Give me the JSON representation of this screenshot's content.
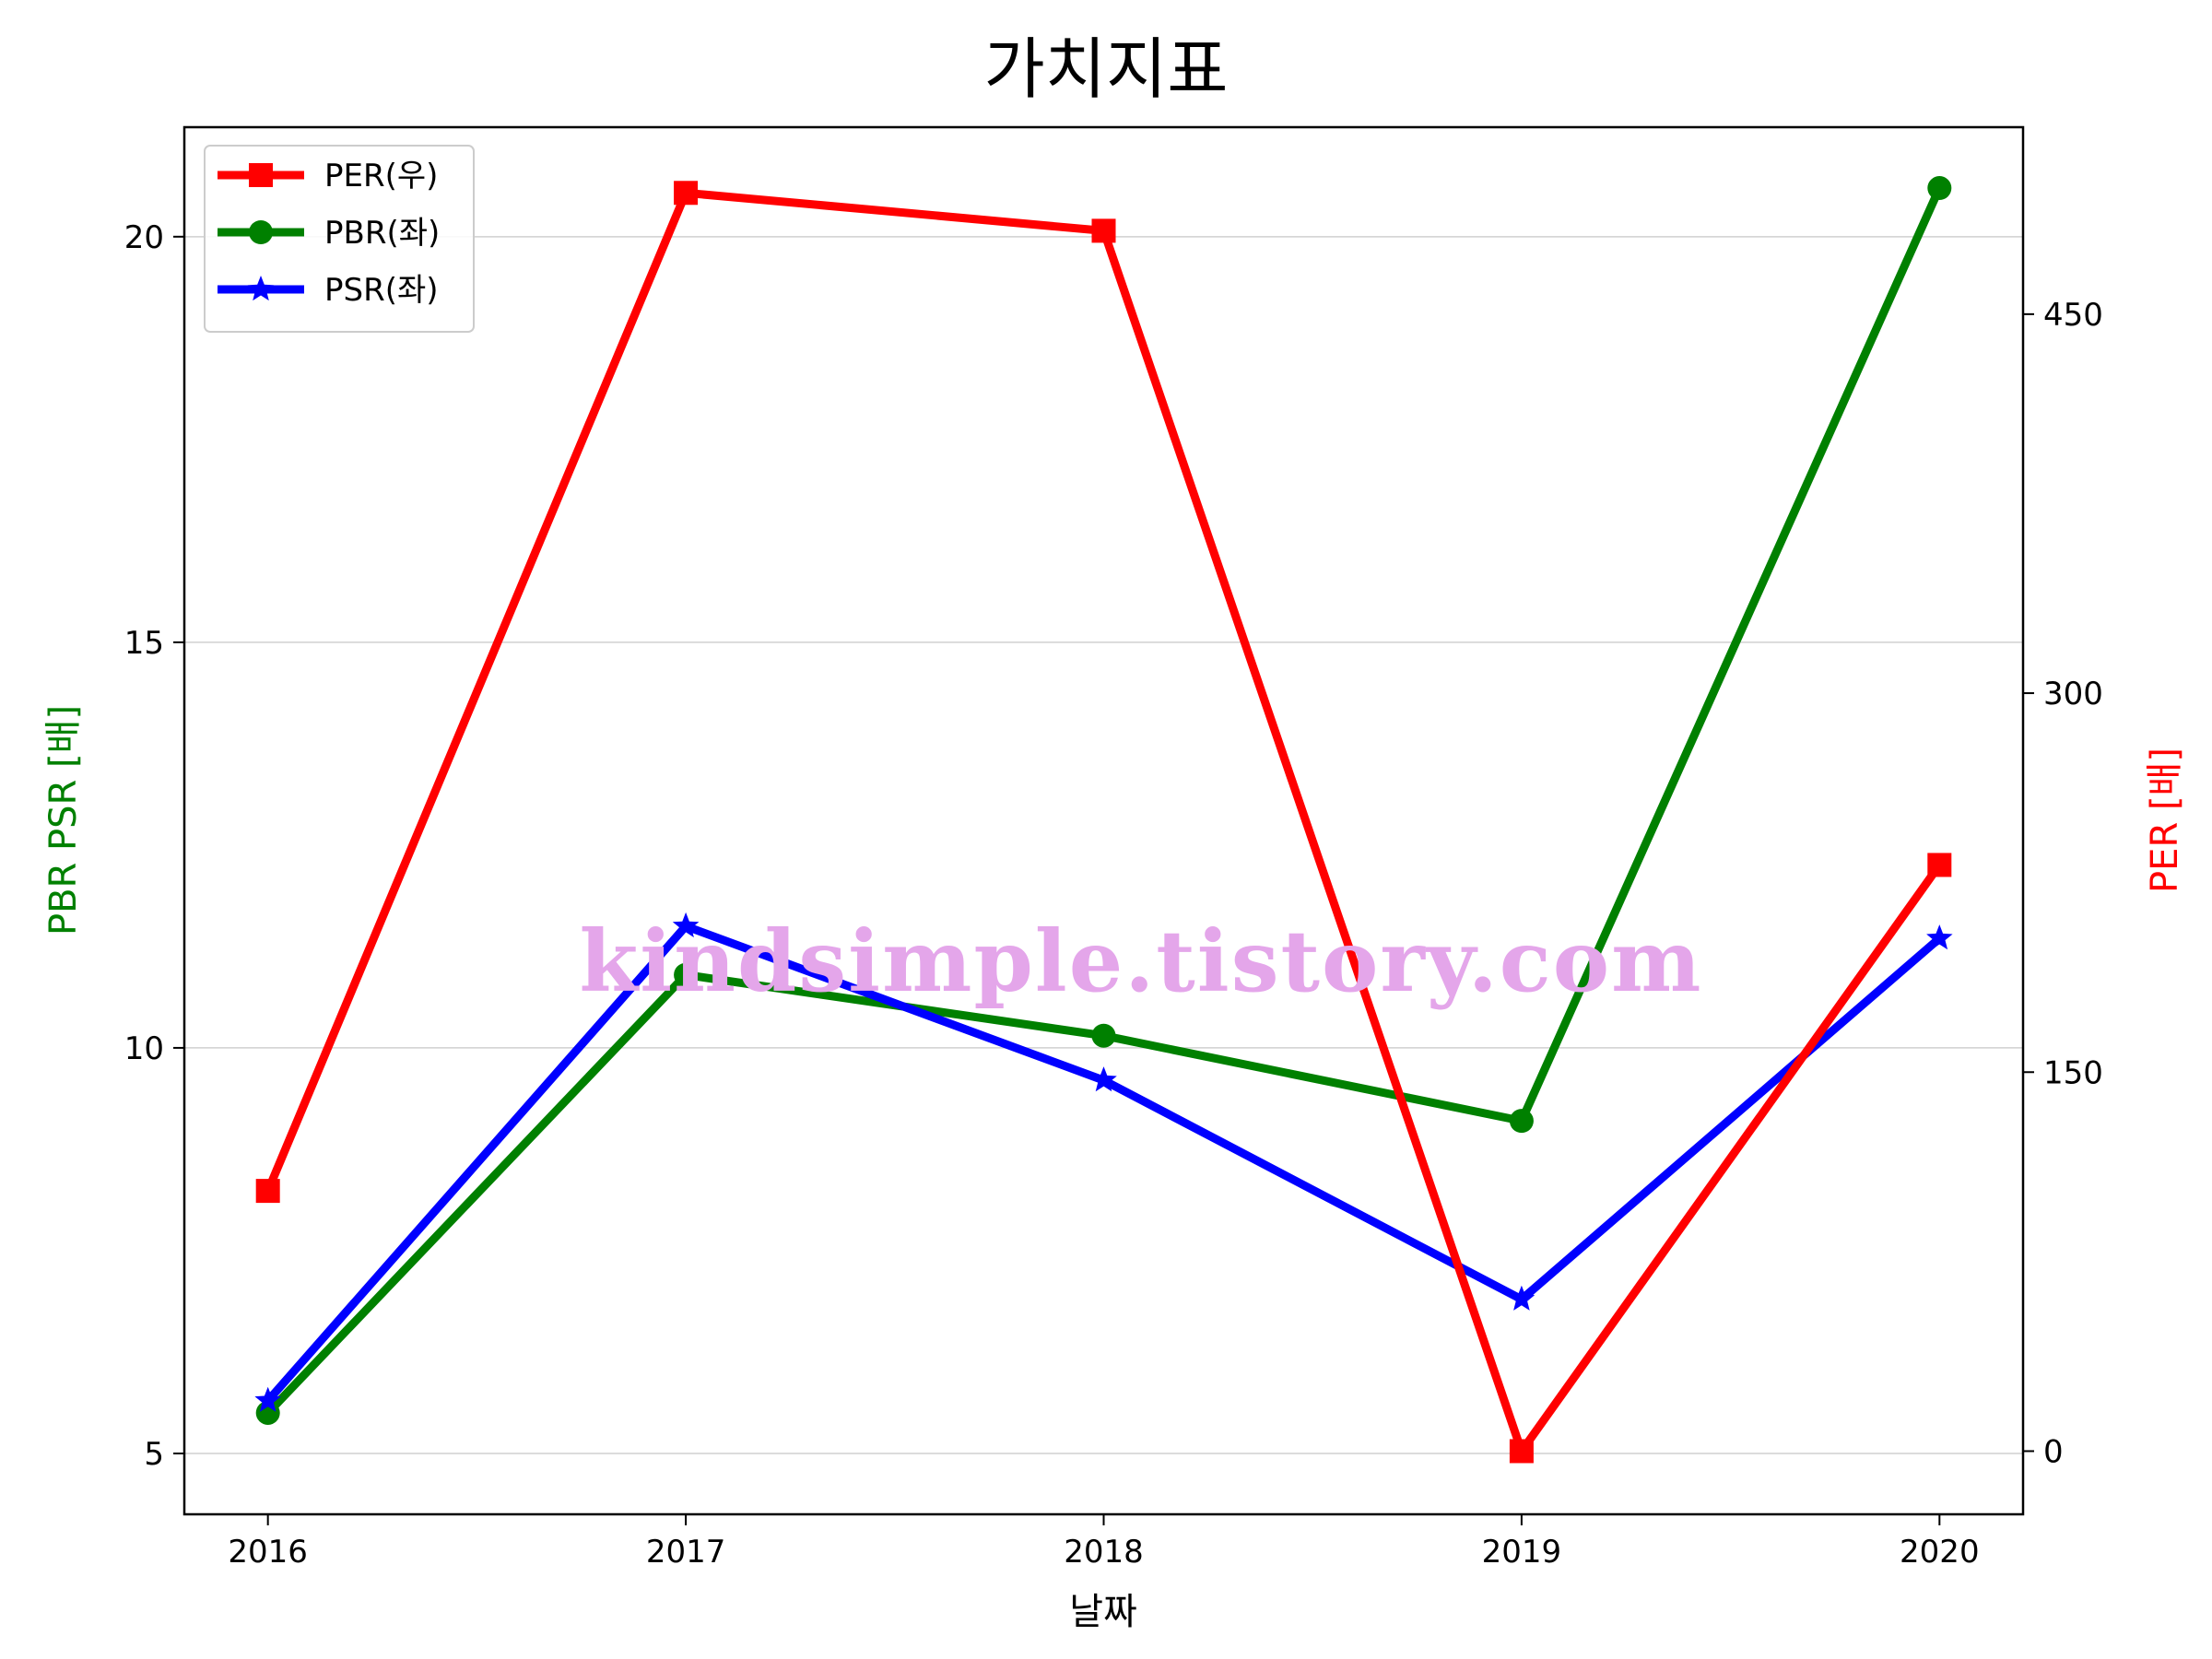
{
  "chart_data": {
    "type": "line",
    "title": "가치지표",
    "xlabel": "날짜",
    "ylabel_left": "PBR PSR [배]",
    "ylabel_right": "PER [배]",
    "categories": [
      "2016",
      "2017",
      "2018",
      "2019",
      "2020"
    ],
    "left_axis": {
      "ylim": [
        4.25,
        21.35
      ],
      "ticks": [
        "5",
        "10",
        "15",
        "20"
      ],
      "color": "#008000"
    },
    "right_axis": {
      "ylim": [
        -25,
        524
      ],
      "ticks": [
        "0",
        "150",
        "300",
        "450"
      ],
      "color": "#ff0000"
    },
    "grid": true,
    "legend_position": "upper-left",
    "series": [
      {
        "name": "PER(우)",
        "axis": "right",
        "color": "#ff0000",
        "marker": "square",
        "values": [
          103,
          498,
          483,
          0,
          232
        ]
      },
      {
        "name": "PBR(좌)",
        "axis": "left",
        "color": "#008000",
        "marker": "circle",
        "values": [
          5.5,
          10.9,
          10.15,
          9.1,
          20.6
        ]
      },
      {
        "name": "PSR(좌)",
        "axis": "left",
        "color": "#0000ff",
        "marker": "star",
        "values": [
          5.65,
          11.5,
          9.6,
          6.9,
          11.35
        ]
      }
    ]
  },
  "watermark": "kindsimple.tistory.com"
}
